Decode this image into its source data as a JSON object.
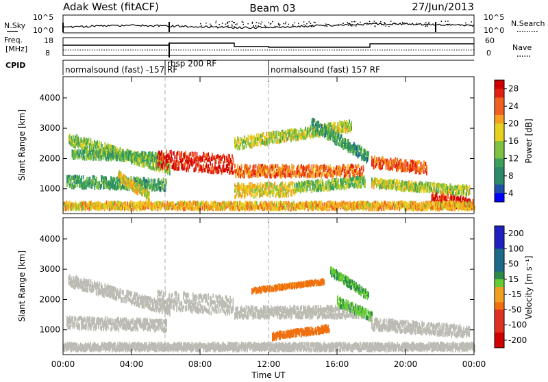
{
  "header": {
    "station": "Adak West (fitACF)",
    "beam": "Beam 03",
    "date": "27/Jun/2013"
  },
  "top_panel": {
    "left_label": "N.Sky",
    "right_label": "N.Search",
    "left_ticks": [
      "10^5",
      "10^0"
    ],
    "right_ticks": [
      "10^5",
      "10^0"
    ]
  },
  "freq_panel": {
    "left_label_1": "Freq.",
    "left_label_2": "[MHz]",
    "right_label": "Nave",
    "left_ticks": [
      "18",
      "8"
    ],
    "right_ticks": [
      "60",
      "0"
    ]
  },
  "cpid": {
    "label": "CPID",
    "segments": [
      {
        "text": "normalsound (fast) -157 RF",
        "start_hour": 0
      },
      {
        "text": "rbsp 200 RF",
        "start_hour": 6
      },
      {
        "text": "normalsound (fast) 157 RF",
        "start_hour": 12
      }
    ]
  },
  "x_axis": {
    "label": "Time UT",
    "ticks": [
      "00:00",
      "04:00",
      "08:00",
      "12:00",
      "16:00",
      "20:00",
      "00:00"
    ]
  },
  "power_panel": {
    "ylabel": "Slant Range [km]",
    "yticks": [
      "4000",
      "3000",
      "2000",
      "1000"
    ],
    "colorbar_label": "Power [dB]",
    "colorbar_ticks": [
      "28",
      "24",
      "20",
      "16",
      "12",
      "8",
      "4"
    ]
  },
  "velocity_panel": {
    "ylabel": "Slant Range [km]",
    "yticks": [
      "4000",
      "3000",
      "2000",
      "1000"
    ],
    "colorbar_label": "Velocity [m s⁻¹]",
    "colorbar_ticks": [
      "200",
      "100",
      "50",
      "15",
      "-15",
      "-50",
      "-100",
      "-200"
    ]
  },
  "chart_data": [
    {
      "type": "heatmap",
      "title": "Power",
      "xlabel": "Time UT",
      "ylabel": "Slant Range [km]",
      "xlim": [
        0,
        24
      ],
      "ylim": [
        180,
        4700
      ],
      "colorbar": {
        "label": "Power [dB]",
        "range": [
          0,
          32
        ]
      },
      "bands": [
        {
          "t": [
            0.3,
            6.2
          ],
          "r": [
            2700,
            1750
          ],
          "width": 260,
          "power": 14
        },
        {
          "t": [
            0.5,
            5.8
          ],
          "r": [
            2200,
            2100
          ],
          "width": 180,
          "power": 12
        },
        {
          "t": [
            0.2,
            6.0
          ],
          "r": [
            1300,
            1200
          ],
          "width": 260,
          "power": 10
        },
        {
          "t": [
            3.2,
            5.0
          ],
          "r": [
            1500,
            800
          ],
          "width": 220,
          "power": 18
        },
        {
          "t": [
            5.5,
            9.9
          ],
          "r": [
            2050,
            1850
          ],
          "width": 420,
          "power": 29
        },
        {
          "t": [
            10.0,
            17.5
          ],
          "r": [
            1650,
            1650
          ],
          "width": 260,
          "power": 24
        },
        {
          "t": [
            10.0,
            13.5
          ],
          "r": [
            1000,
            1050
          ],
          "width": 300,
          "power": 18
        },
        {
          "t": [
            13.5,
            17.6
          ],
          "r": [
            1100,
            1300
          ],
          "width": 220,
          "power": 14
        },
        {
          "t": [
            10.0,
            16.8
          ],
          "r": [
            2550,
            3150
          ],
          "width": 250,
          "power": 16
        },
        {
          "t": [
            14.5,
            17.8
          ],
          "r": [
            3200,
            2100
          ],
          "width": 260,
          "power": 10
        },
        {
          "t": [
            18.0,
            21.2
          ],
          "r": [
            1950,
            1750
          ],
          "width": 250,
          "power": 25
        },
        {
          "t": [
            18.0,
            23.7
          ],
          "r": [
            1250,
            1000
          ],
          "width": 200,
          "power": 16
        },
        {
          "t": [
            21.5,
            23.9
          ],
          "r": [
            750,
            550
          ],
          "width": 240,
          "power": 29
        },
        {
          "t": [
            0.0,
            24.0
          ],
          "r": [
            500,
            500
          ],
          "width": 160,
          "power": 20
        }
      ]
    },
    {
      "type": "heatmap",
      "title": "Velocity",
      "xlabel": "Time UT",
      "ylabel": "Slant Range [km]",
      "xlim": [
        0,
        24
      ],
      "ylim": [
        180,
        4700
      ],
      "colorbar": {
        "label": "Velocity [m s⁻¹]",
        "range": [
          -250,
          250
        ]
      },
      "bands": [
        {
          "t": [
            0.3,
            6.2
          ],
          "r": [
            2700,
            1750
          ],
          "width": 260,
          "velocity": 0
        },
        {
          "t": [
            0.2,
            6.0
          ],
          "r": [
            1300,
            1200
          ],
          "width": 260,
          "velocity": 0
        },
        {
          "t": [
            5.5,
            9.9
          ],
          "r": [
            2050,
            1850
          ],
          "width": 420,
          "velocity": 0
        },
        {
          "t": [
            10.0,
            17.5
          ],
          "r": [
            1650,
            1650
          ],
          "width": 260,
          "velocity": 0
        },
        {
          "t": [
            18.0,
            23.7
          ],
          "r": [
            1250,
            1000
          ],
          "width": 260,
          "velocity": 0
        },
        {
          "t": [
            11.0,
            15.2
          ],
          "r": [
            2350,
            2650
          ],
          "width": 90,
          "velocity": -60
        },
        {
          "t": [
            12.2,
            15.5
          ],
          "r": [
            850,
            1100
          ],
          "width": 140,
          "velocity": -70
        },
        {
          "t": [
            15.6,
            17.8
          ],
          "r": [
            3000,
            2200
          ],
          "width": 180,
          "velocity": 30
        },
        {
          "t": [
            16.0,
            18.0
          ],
          "r": [
            2000,
            1500
          ],
          "width": 200,
          "velocity": 25
        },
        {
          "t": [
            0.0,
            24.0
          ],
          "r": [
            500,
            500
          ],
          "width": 160,
          "velocity": 0
        }
      ]
    }
  ]
}
